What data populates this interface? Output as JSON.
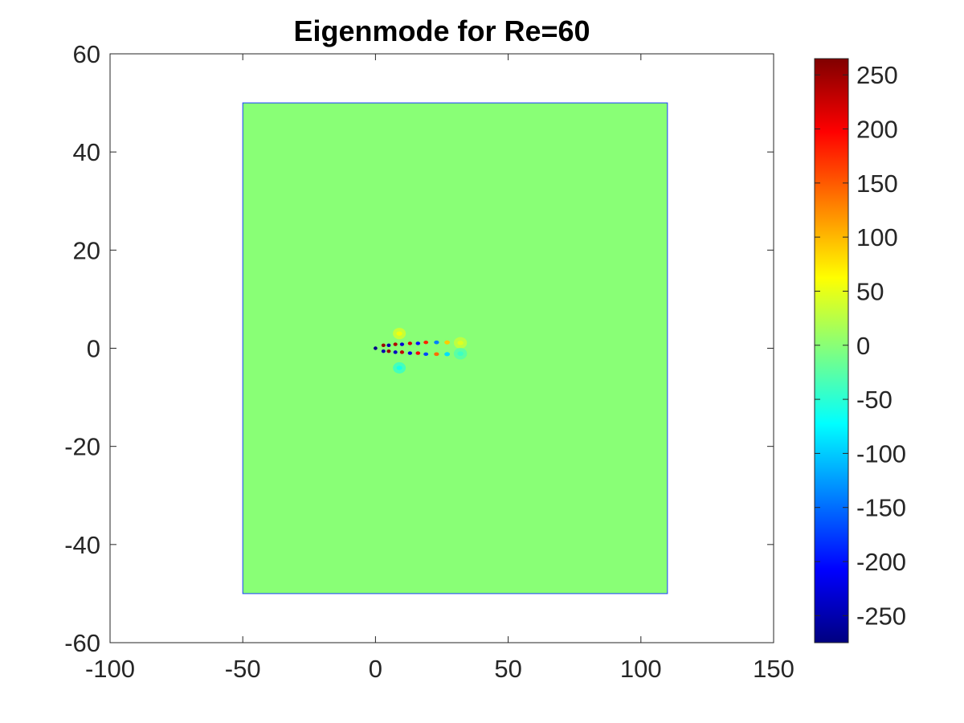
{
  "chart_data": {
    "type": "heatmap",
    "title": "Eigenmode for Re=60",
    "xlabel": "",
    "ylabel": "",
    "xlim": [
      -100,
      150
    ],
    "ylim": [
      -60,
      60
    ],
    "x_ticks": [
      -100,
      -50,
      0,
      50,
      100,
      150
    ],
    "y_ticks": [
      -60,
      -40,
      -20,
      0,
      20,
      40,
      60
    ],
    "x_tick_labels": [
      "-100",
      "-50",
      "0",
      "50",
      "100",
      "150"
    ],
    "y_tick_labels": [
      "-60",
      "-40",
      "-20",
      "0",
      "20",
      "40",
      "60"
    ],
    "domain": {
      "x": [
        -50,
        110
      ],
      "y": [
        -50,
        50
      ]
    },
    "background_value": 0,
    "colormap": "jet",
    "colorbar": {
      "range": [
        -275,
        265
      ],
      "ticks": [
        -250,
        -200,
        -150,
        -100,
        -50,
        0,
        50,
        100,
        150,
        200,
        250
      ],
      "tick_labels": [
        "-250",
        "-200",
        "-150",
        "-100",
        "-50",
        "0",
        "50",
        "100",
        "150",
        "200",
        "250"
      ],
      "placement": "right"
    },
    "features": [
      {
        "x": 3,
        "y": 0.6,
        "value": 250
      },
      {
        "x": 3,
        "y": -0.6,
        "value": -250
      },
      {
        "x": 5,
        "y": 0.6,
        "value": -250
      },
      {
        "x": 5,
        "y": -0.6,
        "value": 250
      },
      {
        "x": 7.5,
        "y": 0.8,
        "value": 240
      },
      {
        "x": 7.5,
        "y": -0.8,
        "value": -240
      },
      {
        "x": 10,
        "y": 0.8,
        "value": -230
      },
      {
        "x": 10,
        "y": -0.8,
        "value": 230
      },
      {
        "x": 13,
        "y": 1,
        "value": 220
      },
      {
        "x": 13,
        "y": -1,
        "value": -220
      },
      {
        "x": 16,
        "y": 1,
        "value": -200
      },
      {
        "x": 16,
        "y": -1,
        "value": 200
      },
      {
        "x": 19,
        "y": 1.2,
        "value": 180
      },
      {
        "x": 19,
        "y": -1.2,
        "value": -170
      },
      {
        "x": 23,
        "y": 1.2,
        "value": -140
      },
      {
        "x": 23,
        "y": -1.2,
        "value": 140
      },
      {
        "x": 27,
        "y": 1.2,
        "value": 90
      },
      {
        "x": 27,
        "y": -1.2,
        "value": -90
      },
      {
        "x": 32,
        "y": 1.1,
        "value": 45
      },
      {
        "x": 32,
        "y": -1.1,
        "value": -40
      },
      {
        "x": 9,
        "y": 3,
        "value": 55
      },
      {
        "x": 9,
        "y": -4,
        "value": -60
      },
      {
        "x": 0,
        "y": 0,
        "value": -270
      }
    ]
  }
}
